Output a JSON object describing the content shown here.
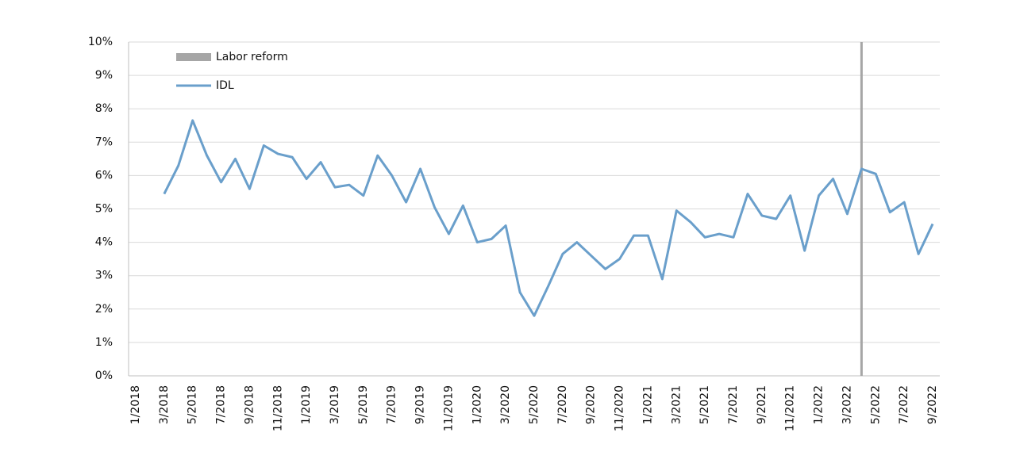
{
  "chart_data": {
    "type": "line",
    "categories": [
      "1/2018",
      null,
      "3/2018",
      null,
      "5/2018",
      null,
      "7/2018",
      null,
      "9/2018",
      null,
      "11/2018",
      null,
      "1/2019",
      null,
      "3/2019",
      null,
      "5/2019",
      null,
      "7/2019",
      null,
      "9/2019",
      null,
      "11/2019",
      null,
      "1/2020",
      null,
      "3/2020",
      null,
      "5/2020",
      null,
      "7/2020",
      null,
      "9/2020",
      null,
      "11/2020",
      null,
      "1/2021",
      null,
      "3/2021",
      null,
      "5/2021",
      null,
      "7/2021",
      null,
      "9/2021",
      null,
      "11/2021",
      null,
      "1/2022",
      null,
      "3/2022",
      null,
      "5/2022",
      null,
      "7/2022",
      null,
      "9/2022"
    ],
    "series": [
      {
        "name": "Labor reform",
        "color": "#a6a6a6",
        "kind": "bar",
        "values": [
          null,
          null,
          null,
          null,
          null,
          null,
          null,
          null,
          null,
          null,
          null,
          null,
          null,
          null,
          null,
          null,
          null,
          null,
          null,
          null,
          null,
          null,
          null,
          null,
          null,
          null,
          null,
          null,
          null,
          null,
          null,
          null,
          null,
          null,
          null,
          null,
          null,
          null,
          null,
          null,
          null,
          null,
          null,
          null,
          null,
          null,
          null,
          null,
          null,
          null,
          null,
          10,
          null,
          null,
          null,
          null,
          null
        ]
      },
      {
        "name": "IDL",
        "color": "#6a9fcb",
        "kind": "line",
        "values": [
          null,
          null,
          5.45,
          6.3,
          7.65,
          6.6,
          5.8,
          6.5,
          5.6,
          6.9,
          6.65,
          6.55,
          5.9,
          6.4,
          5.65,
          5.72,
          5.4,
          6.6,
          6.0,
          5.2,
          6.2,
          5.05,
          4.25,
          5.1,
          4.0,
          4.1,
          4.5,
          2.5,
          1.8,
          2.7,
          3.65,
          4.0,
          3.6,
          3.2,
          3.5,
          4.2,
          4.2,
          2.9,
          4.95,
          4.6,
          4.15,
          4.25,
          4.15,
          5.45,
          4.8,
          4.7,
          5.4,
          3.75,
          5.4,
          5.9,
          4.85,
          6.2,
          6.05,
          4.9,
          5.2,
          3.65,
          4.55
        ]
      }
    ],
    "ylim": [
      0,
      10
    ],
    "yticks": [
      {
        "value": 0,
        "label": "0%"
      },
      {
        "value": 1,
        "label": "1%"
      },
      {
        "value": 2,
        "label": "2%"
      },
      {
        "value": 3,
        "label": "3%"
      },
      {
        "value": 4,
        "label": "4%"
      },
      {
        "value": 5,
        "label": "5%"
      },
      {
        "value": 6,
        "label": "6%"
      },
      {
        "value": 7,
        "label": "7%"
      },
      {
        "value": 8,
        "label": "8%"
      },
      {
        "value": 9,
        "label": "9%"
      },
      {
        "value": 10,
        "label": "10%"
      }
    ],
    "grid": true,
    "legend": "top-left"
  }
}
